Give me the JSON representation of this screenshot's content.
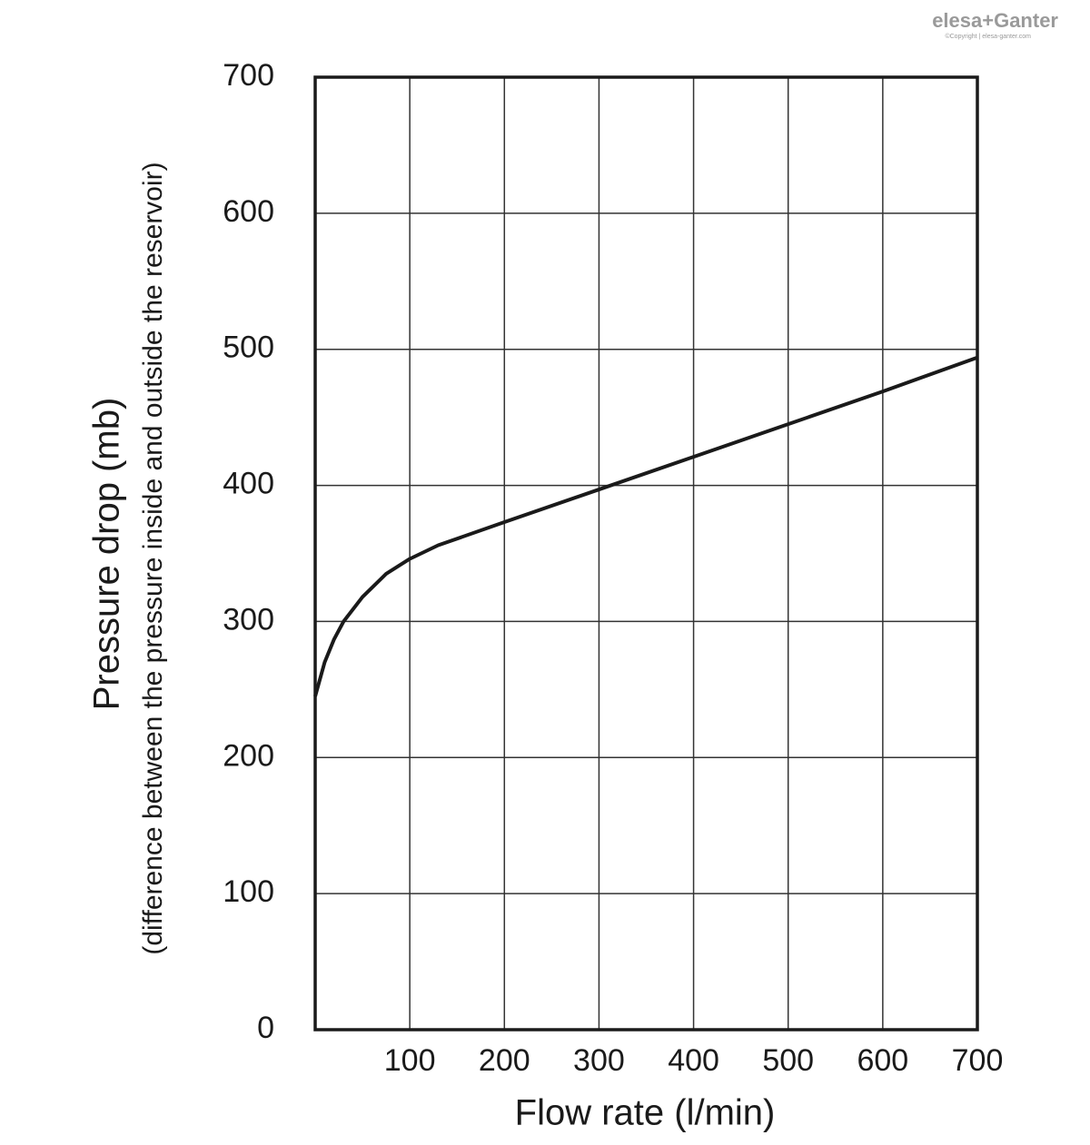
{
  "logo": "elesa+Ganter",
  "copyright": "©Copyright | elesa-ganter.com",
  "chart_data": {
    "type": "line",
    "x_label": "Flow rate (l/min)",
    "y_label": "Pressure drop (mb)",
    "y_sublabel": "(difference between the pressure inside and outside the reservoir)",
    "x": [
      0,
      10,
      20,
      30,
      50,
      75,
      100,
      130,
      200,
      300,
      400,
      500,
      600,
      700
    ],
    "values": [
      245,
      270,
      287,
      300,
      318,
      335,
      346,
      356,
      373,
      397,
      421,
      445,
      469,
      494
    ],
    "color": "#1a1a1a",
    "xlim": [
      0,
      700
    ],
    "xticks": [
      100,
      200,
      300,
      400,
      500,
      600,
      700
    ],
    "ylim": [
      0,
      700
    ],
    "yticks": [
      0,
      100,
      200,
      300,
      400,
      500,
      600,
      700
    ],
    "grid": true
  }
}
